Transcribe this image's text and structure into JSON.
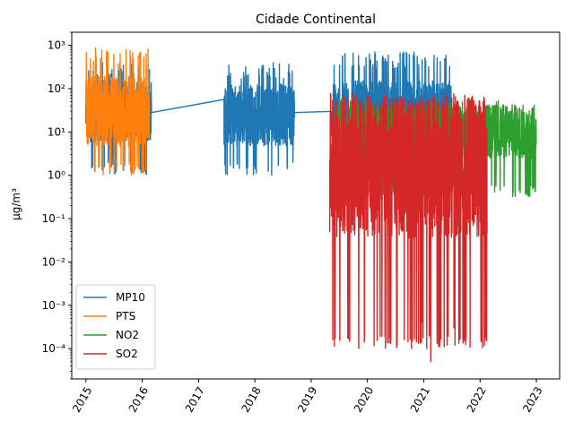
{
  "chart_data": {
    "type": "line",
    "title": "Cidade Continental",
    "xlabel": "",
    "ylabel": "µg/m³",
    "yscale": "log",
    "xlim": [
      "2014-10-01",
      "2023-06-01"
    ],
    "ylim": [
      2e-05,
      2000
    ],
    "xticks": [
      "2015",
      "2016",
      "2017",
      "2018",
      "2019",
      "2020",
      "2021",
      "2022",
      "2023"
    ],
    "yticks": [
      "10⁻⁴",
      "10⁻³",
      "10⁻²",
      "10⁻¹",
      "10⁰",
      "10¹",
      "10²",
      "10³"
    ],
    "legend": {
      "position": "lower-left"
    },
    "grid": false,
    "series": [
      {
        "name": "MP10",
        "color": "#1f77b4",
        "segments": [
          {
            "start": "2015-01-01",
            "end": "2016-03-01",
            "low": 1,
            "high": 400,
            "median": 30
          },
          {
            "start": "2017-06-15",
            "end": "2018-09-15",
            "low": 1,
            "high": 400,
            "median": 25
          },
          {
            "start": "2019-05-15",
            "end": "2021-06-30",
            "low": 1,
            "high": 700,
            "median": 25
          }
        ],
        "points": [
          [
            "2016-03-01",
            28
          ],
          [
            "2017-06-15",
            6
          ],
          [
            "2018-09-15",
            28
          ],
          [
            "2019-05-15",
            18
          ]
        ]
      },
      {
        "name": "PTS",
        "color": "#ff7f0e",
        "segments": [
          {
            "start": "2015-01-01",
            "end": "2016-02-15",
            "low": 1,
            "high": 900,
            "median": 30
          }
        ],
        "points": []
      },
      {
        "name": "NO2",
        "color": "#2ca02c",
        "segments": [
          {
            "start": "2019-06-01",
            "end": "2022-12-31",
            "low": 0.3,
            "high": 60,
            "median": 10
          }
        ],
        "points": []
      },
      {
        "name": "SO2",
        "color": "#d62728",
        "segments": [
          {
            "start": "2019-05-01",
            "end": "2022-02-15",
            "low": 0.0001,
            "high": 80,
            "median": 1.5
          }
        ],
        "points": [
          [
            "2020-12-20",
            0.0004
          ],
          [
            "2021-01-20",
            0.0001
          ],
          [
            "2021-02-15",
            5e-05
          ],
          [
            "2021-07-15",
            0.0003
          ]
        ]
      }
    ]
  }
}
